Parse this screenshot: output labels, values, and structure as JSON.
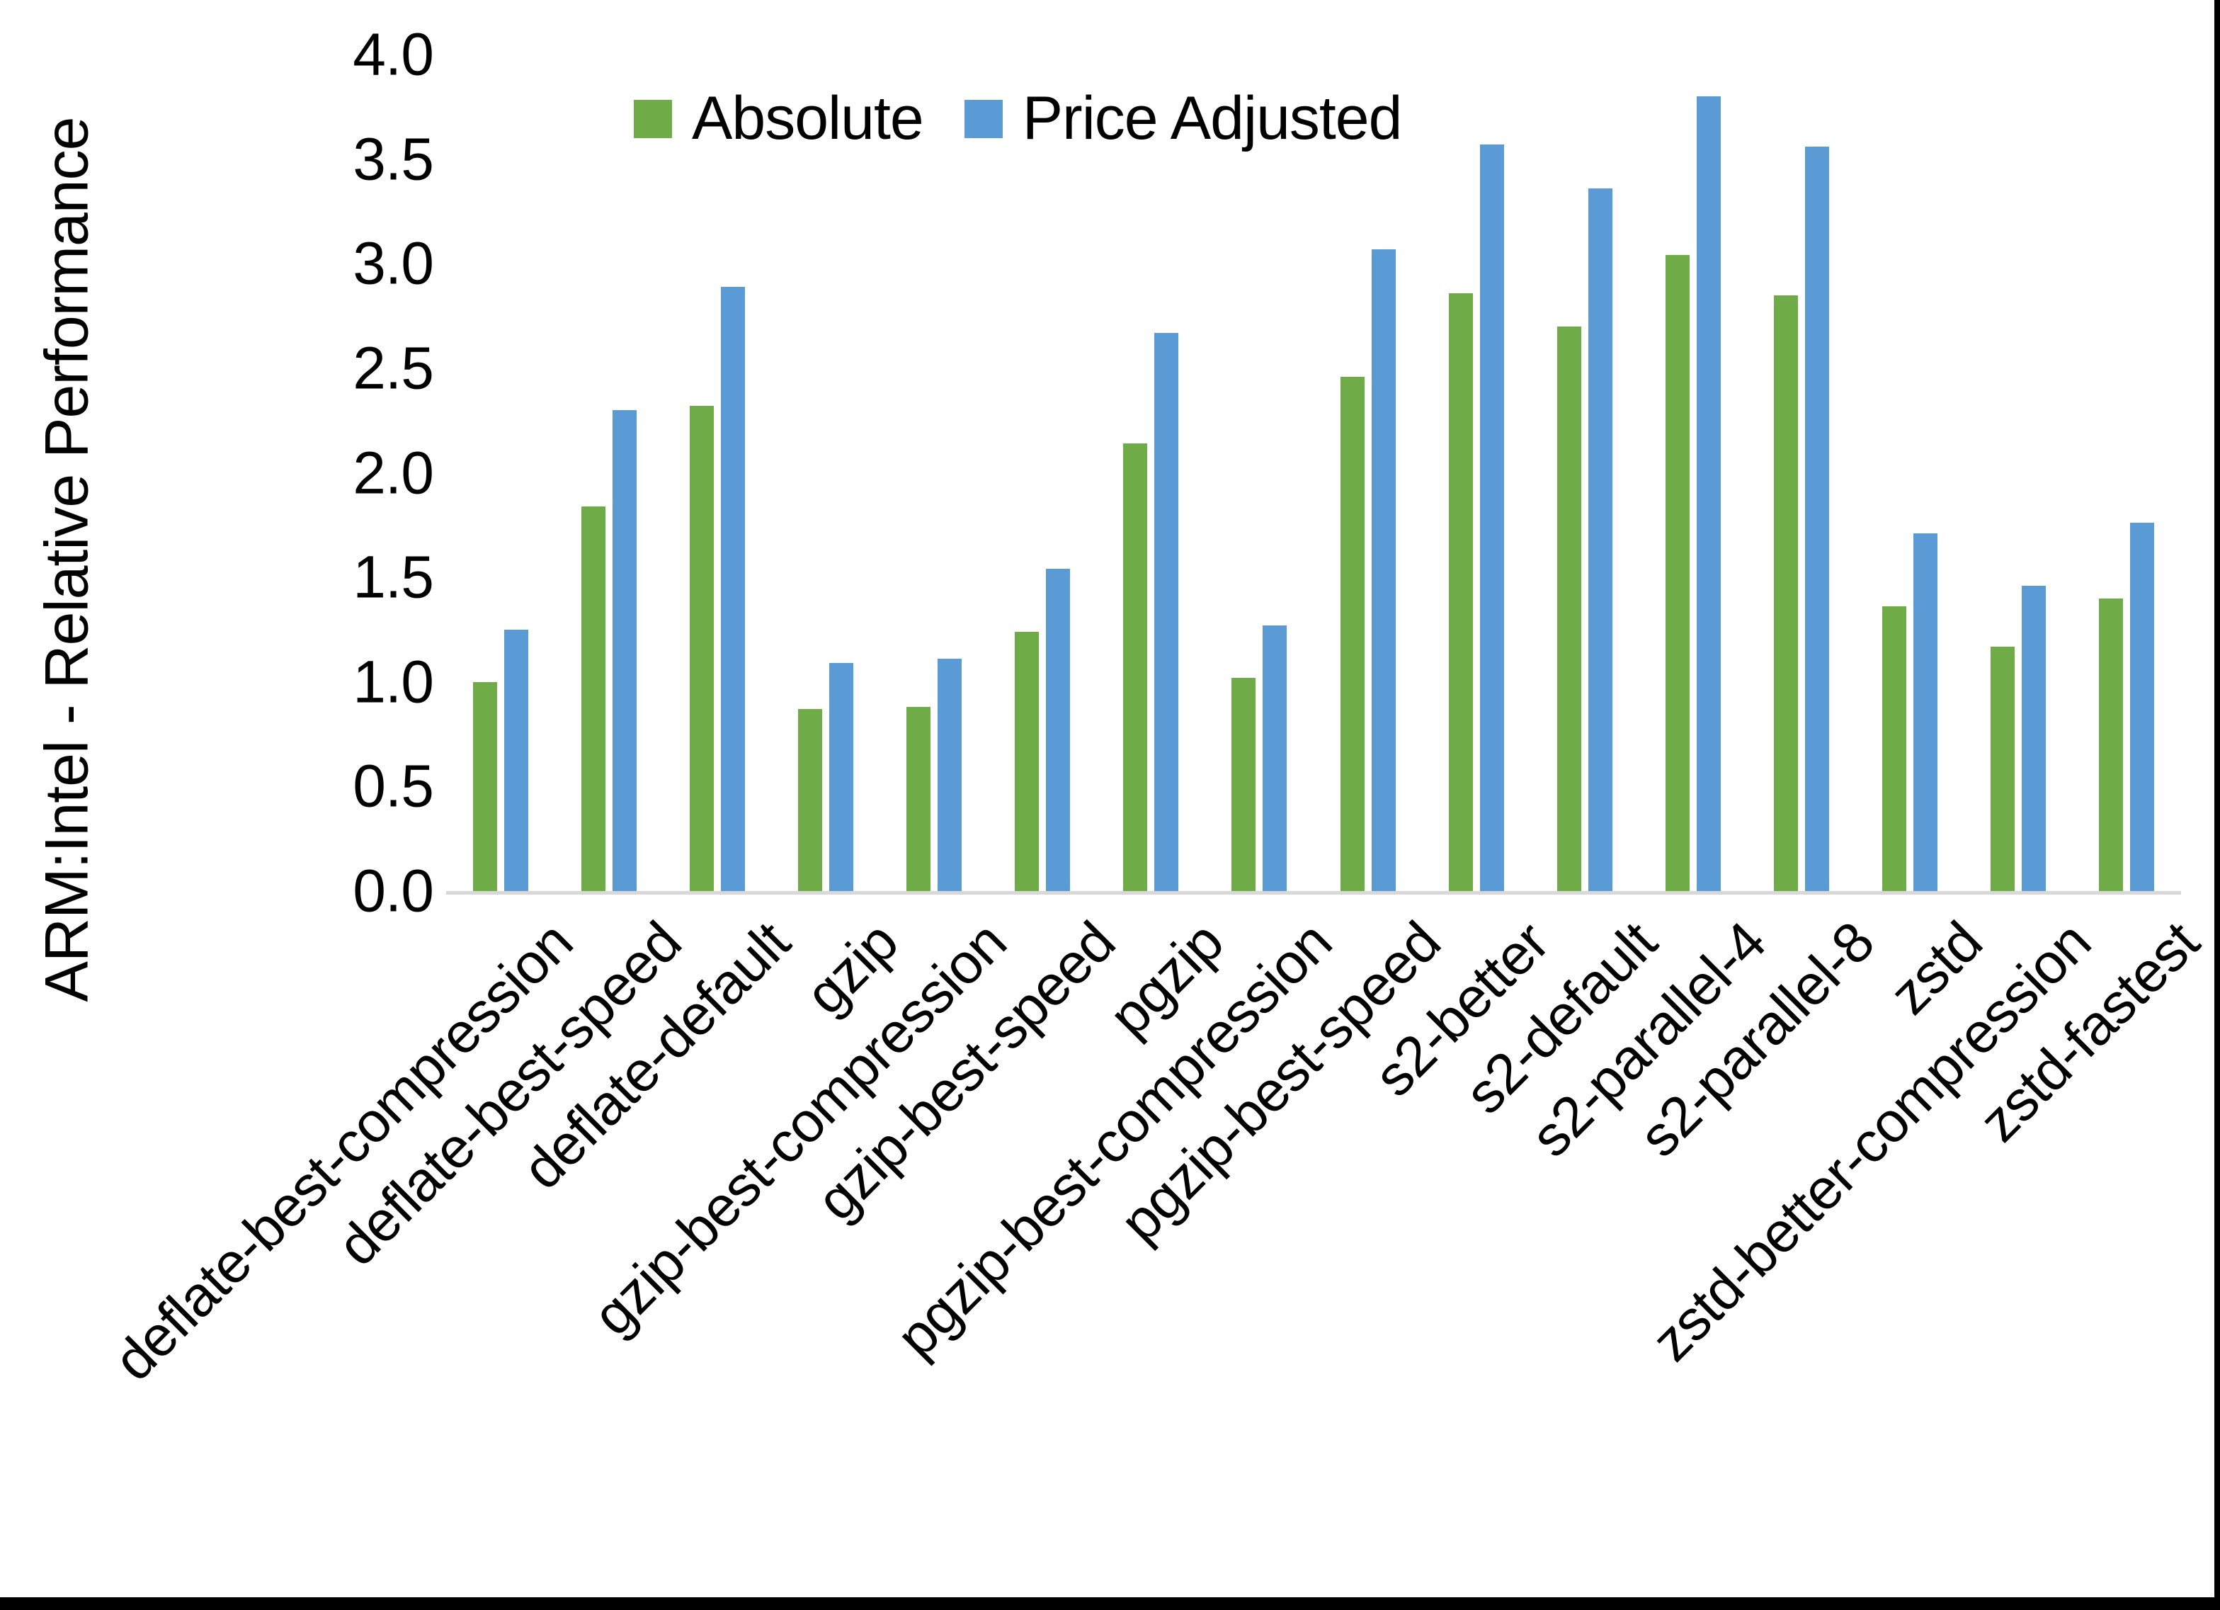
{
  "page": {
    "background": "#FFFFFF",
    "bottom_border_color": "#000000",
    "right_border_color": "#000000"
  },
  "chart_data": {
    "type": "bar",
    "title": "",
    "ylabel": "ARM:Intel - Relative Performance",
    "xlabel": "",
    "ylim": [
      0.0,
      4.0
    ],
    "ytick_step": 0.5,
    "yticks": [
      "0.0",
      "0.5",
      "1.0",
      "1.5",
      "2.0",
      "2.5",
      "3.0",
      "3.5",
      "4.0"
    ],
    "grid": "off",
    "legend_position": "top-inside",
    "axis_line_color": "#D8D8D8",
    "categories": [
      "deflate-best-compression",
      "deflate-best-speed",
      "deflate-default",
      "gzip",
      "gzip-best-compression",
      "gzip-best-speed",
      "pgzip",
      "pgzip-best-compression",
      "pgzip-best-speed",
      "s2-better",
      "s2-default",
      "s2-parallel-4",
      "s2-parallel-8",
      "zstd",
      "zstd-better-compression",
      "zstd-fastest"
    ],
    "series": [
      {
        "name": "Absolute",
        "color": "#6FAC47",
        "values": [
          1.0,
          1.84,
          2.32,
          0.87,
          0.88,
          1.24,
          2.14,
          1.02,
          2.46,
          2.86,
          2.7,
          3.04,
          2.85,
          1.36,
          1.17,
          1.4
        ]
      },
      {
        "name": "Price Adjusted",
        "color": "#5B9BD5",
        "values": [
          1.25,
          2.3,
          2.89,
          1.09,
          1.11,
          1.54,
          2.67,
          1.27,
          3.07,
          3.57,
          3.36,
          3.8,
          3.56,
          1.71,
          1.46,
          1.76
        ]
      }
    ]
  }
}
